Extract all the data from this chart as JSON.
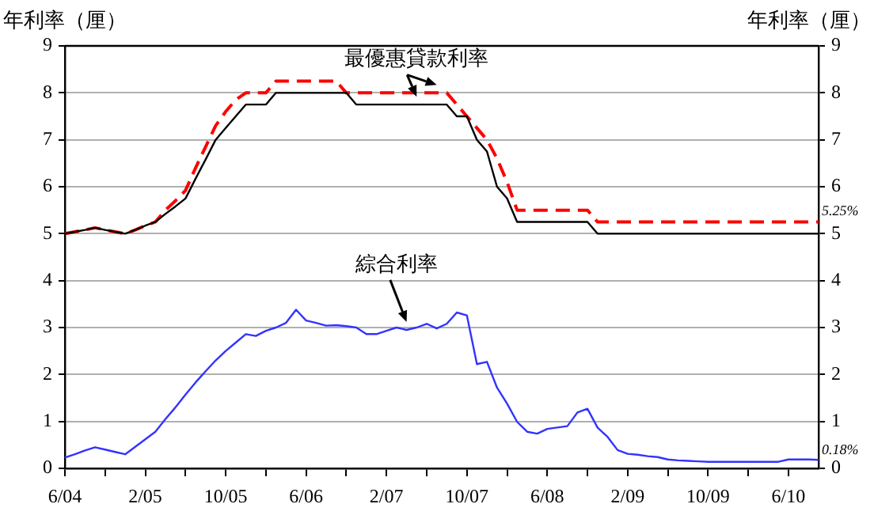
{
  "chart_data": {
    "type": "line",
    "ylabel": "年利率（厘）",
    "y2label": "年利率（厘）",
    "categories": [
      "6/04",
      null,
      null,
      null,
      null,
      null,
      null,
      null,
      "2/05",
      null,
      null,
      null,
      null,
      null,
      null,
      null,
      "10/05",
      null,
      null,
      null,
      null,
      null,
      null,
      null,
      "6/06",
      null,
      null,
      null,
      null,
      null,
      null,
      null,
      "2/07",
      null,
      null,
      null,
      null,
      null,
      null,
      null,
      "10/07",
      null,
      null,
      null,
      null,
      null,
      null,
      null,
      "6/08",
      null,
      null,
      null,
      null,
      null,
      null,
      null,
      "2/09",
      null,
      null,
      null,
      null,
      null,
      null,
      null,
      "10/09",
      null,
      null,
      null,
      null,
      null,
      null,
      null,
      "6/10",
      null,
      null,
      null
    ],
    "series": [
      {
        "color": "#000000",
        "line_style": "solid",
        "values": [
          5.0,
          5.04,
          5.08,
          5.125,
          5.08,
          5.04,
          5.0,
          5.08,
          5.17,
          5.25,
          5.42,
          5.58,
          5.75,
          6.17,
          6.58,
          7.0,
          7.25,
          7.5,
          7.75,
          7.75,
          7.75,
          8.0,
          8.0,
          8.0,
          8.0,
          8.0,
          8.0,
          8.0,
          8.0,
          7.75,
          7.75,
          7.75,
          7.75,
          7.75,
          7.75,
          7.75,
          7.75,
          7.75,
          7.75,
          7.5,
          7.5,
          7.0,
          6.75,
          6.0,
          5.75,
          5.25,
          5.25,
          5.25,
          5.25,
          5.25,
          5.25,
          5.25,
          5.25,
          5.0,
          5.0,
          5.0,
          5.0,
          5.0,
          5.0,
          5.0,
          5.0,
          5.0,
          5.0,
          5.0,
          5.0,
          5.0,
          5.0,
          5.0,
          5.0,
          5.0,
          5.0,
          5.0,
          5.0,
          5.0,
          5.0,
          5.0
        ]
      },
      {
        "color": "#ff0000",
        "line_style": "dashed",
        "values": [
          5.0,
          5.04,
          5.08,
          5.125,
          5.08,
          5.04,
          5.0,
          5.08,
          5.17,
          5.25,
          5.5,
          5.7,
          5.92,
          6.4,
          6.85,
          7.3,
          7.6,
          7.85,
          8.0,
          8.0,
          8.0,
          8.25,
          8.25,
          8.25,
          8.25,
          8.25,
          8.25,
          8.25,
          8.0,
          8.0,
          8.0,
          8.0,
          8.0,
          8.0,
          8.0,
          8.0,
          8.0,
          8.0,
          8.0,
          7.75,
          7.5,
          7.25,
          7.0,
          6.6,
          6.1,
          5.5,
          5.5,
          5.5,
          5.5,
          5.5,
          5.5,
          5.5,
          5.5,
          5.25,
          5.25,
          5.25,
          5.25,
          5.25,
          5.25,
          5.25,
          5.25,
          5.25,
          5.25,
          5.25,
          5.25,
          5.25,
          5.25,
          5.25,
          5.25,
          5.25,
          5.25,
          5.25,
          5.25,
          5.25,
          5.25,
          5.25
        ]
      },
      {
        "color": "#3333ff",
        "line_style": "solid",
        "values": [
          0.23,
          0.3,
          0.38,
          0.45,
          0.4,
          0.35,
          0.3,
          0.46,
          0.62,
          0.78,
          1.05,
          1.3,
          1.57,
          1.83,
          2.07,
          2.3,
          2.5,
          2.68,
          2.86,
          2.82,
          2.93,
          3.0,
          3.1,
          3.38,
          3.15,
          3.1,
          3.04,
          3.05,
          3.03,
          3.0,
          2.86,
          2.86,
          2.93,
          3.0,
          2.95,
          3.0,
          3.08,
          2.98,
          3.08,
          3.32,
          3.26,
          2.22,
          2.27,
          1.72,
          1.38,
          0.99,
          0.78,
          0.74,
          0.84,
          0.87,
          0.9,
          1.19,
          1.27,
          0.87,
          0.67,
          0.39,
          0.31,
          0.29,
          0.26,
          0.24,
          0.19,
          0.17,
          0.16,
          0.15,
          0.14,
          0.14,
          0.14,
          0.14,
          0.14,
          0.14,
          0.14,
          0.14,
          0.19,
          0.19,
          0.19,
          0.18
        ]
      }
    ],
    "ylim": [
      0,
      9
    ],
    "yticks": [
      0,
      1,
      2,
      3,
      4,
      5,
      6,
      7,
      8,
      9
    ],
    "y2lim": [
      0,
      9
    ],
    "y2ticks": [
      0,
      1,
      2,
      3,
      4,
      5,
      6,
      7,
      8,
      9
    ],
    "annotations": [
      "最優惠貸款利率",
      "綜合利率",
      "5.25%",
      "0.18%"
    ],
    "grid": "y",
    "legend": false
  }
}
